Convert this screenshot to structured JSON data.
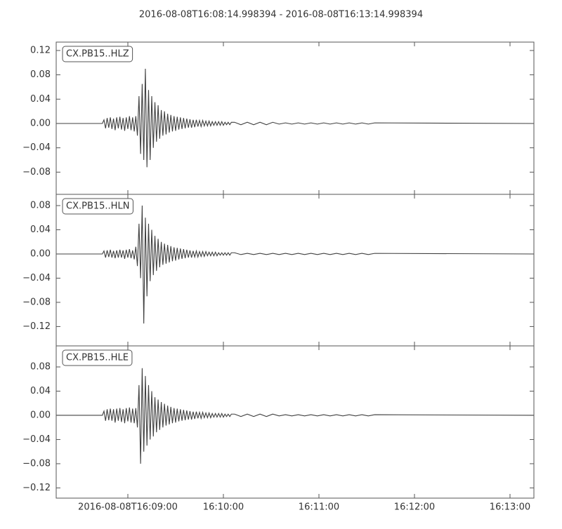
{
  "title": "2016-08-08T16:08:14.998394  -  2016-08-08T16:13:14.998394",
  "chart_data": [
    {
      "type": "line",
      "label": "CX.PB15..HLZ",
      "color": "#404040",
      "xlim": [
        0,
        300
      ],
      "ylim": [
        -0.1165,
        0.1338
      ],
      "yticks": [
        {
          "value": -0.08,
          "label": "−0.08"
        },
        {
          "value": -0.04,
          "label": "−0.04"
        },
        {
          "value": 0,
          "label": "0.00"
        },
        {
          "value": 0.04,
          "label": "0.04"
        },
        {
          "value": 0.08,
          "label": "0.08"
        },
        {
          "value": 0.12,
          "label": "0.12"
        }
      ],
      "x": [
        0,
        29,
        30,
        31,
        32,
        33,
        34,
        35,
        36,
        37,
        38,
        39,
        40,
        41,
        42,
        43,
        44,
        45,
        46,
        47,
        48,
        49,
        50,
        51,
        52,
        53,
        54,
        55,
        56,
        57,
        58,
        59,
        60,
        61,
        62,
        63,
        64,
        65,
        66,
        67,
        68,
        69,
        70,
        71,
        72,
        73,
        74,
        75,
        76,
        77,
        78,
        79,
        80,
        81,
        82,
        83,
        84,
        85,
        86,
        87,
        88,
        89,
        90,
        91,
        92,
        93,
        94,
        95,
        96,
        97,
        98,
        99,
        100,
        101,
        102,
        103,
        104,
        105,
        106,
        107,
        108,
        109,
        110,
        112,
        116,
        120,
        124,
        128,
        132,
        136,
        140,
        144,
        148,
        152,
        156,
        160,
        164,
        168,
        172,
        176,
        180,
        184,
        188,
        192,
        196,
        200,
        300
      ],
      "values": [
        0,
        0,
        0.006,
        -0.008,
        0.009,
        -0.007,
        0.01,
        -0.009,
        0.008,
        -0.011,
        0.01,
        -0.008,
        0.011,
        -0.01,
        0.009,
        -0.012,
        0.01,
        -0.009,
        0.012,
        -0.011,
        0.01,
        -0.013,
        0.012,
        -0.02,
        0.045,
        -0.05,
        0.065,
        -0.06,
        0.09,
        -0.072,
        0.055,
        -0.06,
        0.045,
        -0.04,
        0.035,
        -0.03,
        0.03,
        -0.025,
        0.022,
        -0.02,
        0.02,
        -0.018,
        0.016,
        -0.015,
        0.014,
        -0.013,
        0.012,
        -0.012,
        0.011,
        -0.01,
        0.01,
        -0.009,
        0.009,
        -0.008,
        0.008,
        -0.007,
        0.007,
        -0.007,
        0.006,
        -0.006,
        0.006,
        -0.005,
        0.005,
        -0.005,
        0.005,
        -0.004,
        0.004,
        -0.004,
        0.004,
        -0.004,
        0.003,
        -0.003,
        0.003,
        -0.003,
        0.003,
        -0.003,
        0.003,
        -0.003,
        0.002,
        -0.002,
        0.002,
        -0.002,
        0.002,
        0.002,
        -0.002,
        0.002,
        -0.002,
        0.002,
        -0.002,
        0.002,
        -0.001,
        0.001,
        -0.001,
        0.001,
        -0.001,
        0.001,
        -0.001,
        0.001,
        -0.001,
        0.001,
        -0.001,
        0.001,
        -0.001,
        0.001,
        -0.001,
        0.001,
        0
      ]
    },
    {
      "type": "line",
      "label": "CX.PB15..HLN",
      "color": "#404040",
      "xlim": [
        0,
        300
      ],
      "ylim": [
        -0.152,
        0.0986
      ],
      "yticks": [
        {
          "value": -0.12,
          "label": "−0.12"
        },
        {
          "value": -0.08,
          "label": "−0.08"
        },
        {
          "value": -0.04,
          "label": "−0.04"
        },
        {
          "value": 0,
          "label": "0.00"
        },
        {
          "value": 0.04,
          "label": "0.04"
        },
        {
          "value": 0.08,
          "label": "0.08"
        }
      ],
      "x": [
        0,
        29,
        30,
        31,
        32,
        33,
        34,
        35,
        36,
        37,
        38,
        39,
        40,
        41,
        42,
        43,
        44,
        45,
        46,
        47,
        48,
        49,
        50,
        51,
        52,
        53,
        54,
        55,
        56,
        57,
        58,
        59,
        60,
        61,
        62,
        63,
        64,
        65,
        66,
        67,
        68,
        69,
        70,
        71,
        72,
        73,
        74,
        75,
        76,
        77,
        78,
        79,
        80,
        81,
        82,
        83,
        84,
        85,
        86,
        87,
        88,
        89,
        90,
        91,
        92,
        93,
        94,
        95,
        96,
        97,
        98,
        99,
        100,
        101,
        102,
        103,
        104,
        105,
        106,
        107,
        108,
        109,
        110,
        112,
        116,
        120,
        124,
        128,
        132,
        136,
        140,
        144,
        148,
        152,
        156,
        160,
        164,
        168,
        172,
        176,
        180,
        184,
        188,
        192,
        196,
        200,
        300
      ],
      "values": [
        0,
        0,
        0.005,
        -0.006,
        0.006,
        -0.005,
        0.007,
        -0.006,
        0.005,
        -0.007,
        0.006,
        -0.006,
        0.007,
        -0.006,
        0.006,
        -0.008,
        0.007,
        -0.006,
        0.008,
        -0.007,
        0.006,
        -0.009,
        0.012,
        -0.02,
        0.05,
        -0.04,
        0.08,
        -0.115,
        0.06,
        -0.07,
        0.05,
        -0.045,
        0.04,
        -0.035,
        0.03,
        -0.028,
        0.025,
        -0.022,
        0.02,
        -0.018,
        0.017,
        -0.016,
        0.015,
        -0.014,
        0.013,
        -0.012,
        0.011,
        -0.011,
        0.01,
        -0.009,
        0.009,
        -0.008,
        0.008,
        -0.007,
        0.007,
        -0.006,
        0.006,
        -0.006,
        0.005,
        -0.005,
        0.005,
        -0.005,
        0.004,
        -0.004,
        0.004,
        -0.004,
        0.004,
        -0.003,
        0.003,
        -0.003,
        0.003,
        -0.003,
        0.003,
        -0.003,
        0.002,
        -0.002,
        0.002,
        -0.002,
        0.002,
        -0.002,
        0.002,
        -0.002,
        0.002,
        0.002,
        -0.001,
        0.001,
        -0.001,
        0.001,
        -0.001,
        0.001,
        -0.001,
        0.001,
        -0.001,
        0.001,
        -0.001,
        0.001,
        -0.001,
        0.001,
        -0.001,
        0.001,
        -0.001,
        0.001,
        -0.001,
        0.001,
        -0.001,
        0.001,
        0
      ]
    },
    {
      "type": "line",
      "label": "CX.PB15..HLE",
      "color": "#404040",
      "xlim": [
        0,
        300
      ],
      "ylim": [
        -0.1369,
        0.1148
      ],
      "xticks": [
        {
          "value": 45.001606,
          "label": "2016-08-08T16:09:00"
        },
        {
          "value": 105.001606,
          "label": "16:10:00"
        },
        {
          "value": 165.001606,
          "label": "16:11:00"
        },
        {
          "value": 225.001606,
          "label": "16:12:00"
        },
        {
          "value": 285.001606,
          "label": "16:13:00"
        }
      ],
      "yticks": [
        {
          "value": -0.12,
          "label": "−0.12"
        },
        {
          "value": -0.08,
          "label": "−0.08"
        },
        {
          "value": -0.04,
          "label": "−0.04"
        },
        {
          "value": 0,
          "label": "0.00"
        },
        {
          "value": 0.04,
          "label": "0.04"
        },
        {
          "value": 0.08,
          "label": "0.08"
        }
      ],
      "x": [
        0,
        29,
        30,
        31,
        32,
        33,
        34,
        35,
        36,
        37,
        38,
        39,
        40,
        41,
        42,
        43,
        44,
        45,
        46,
        47,
        48,
        49,
        50,
        51,
        52,
        53,
        54,
        55,
        56,
        57,
        58,
        59,
        60,
        61,
        62,
        63,
        64,
        65,
        66,
        67,
        68,
        69,
        70,
        71,
        72,
        73,
        74,
        75,
        76,
        77,
        78,
        79,
        80,
        81,
        82,
        83,
        84,
        85,
        86,
        87,
        88,
        89,
        90,
        91,
        92,
        93,
        94,
        95,
        96,
        97,
        98,
        99,
        100,
        101,
        102,
        103,
        104,
        105,
        106,
        107,
        108,
        109,
        110,
        112,
        116,
        120,
        124,
        128,
        132,
        136,
        140,
        144,
        148,
        152,
        156,
        160,
        164,
        168,
        172,
        176,
        180,
        184,
        188,
        192,
        196,
        200,
        300
      ],
      "values": [
        0,
        0,
        0.007,
        -0.009,
        0.01,
        -0.008,
        0.011,
        -0.009,
        0.01,
        -0.012,
        0.011,
        -0.009,
        0.012,
        -0.011,
        0.01,
        -0.013,
        0.012,
        -0.01,
        0.013,
        -0.012,
        0.011,
        -0.013,
        0.012,
        -0.02,
        0.05,
        -0.08,
        0.078,
        -0.06,
        0.065,
        -0.05,
        0.05,
        -0.04,
        0.04,
        -0.035,
        0.03,
        -0.028,
        0.026,
        -0.024,
        0.022,
        -0.02,
        0.019,
        -0.017,
        0.016,
        -0.015,
        0.014,
        -0.013,
        0.012,
        -0.012,
        0.011,
        -0.01,
        0.01,
        -0.009,
        0.009,
        -0.008,
        0.008,
        -0.007,
        0.007,
        -0.007,
        0.006,
        -0.006,
        0.006,
        -0.005,
        0.005,
        -0.005,
        0.005,
        -0.004,
        0.004,
        -0.004,
        0.004,
        -0.004,
        0.003,
        -0.003,
        0.003,
        -0.003,
        0.003,
        -0.003,
        0.003,
        -0.003,
        0.002,
        -0.002,
        0.002,
        -0.002,
        0.002,
        0.002,
        -0.002,
        0.002,
        -0.002,
        0.002,
        -0.002,
        0.002,
        -0.001,
        0.001,
        -0.001,
        0.001,
        -0.001,
        0.001,
        -0.001,
        0.001,
        -0.001,
        0.001,
        -0.001,
        0.001,
        -0.001,
        0.001,
        -0.001,
        0.001,
        0
      ]
    }
  ]
}
